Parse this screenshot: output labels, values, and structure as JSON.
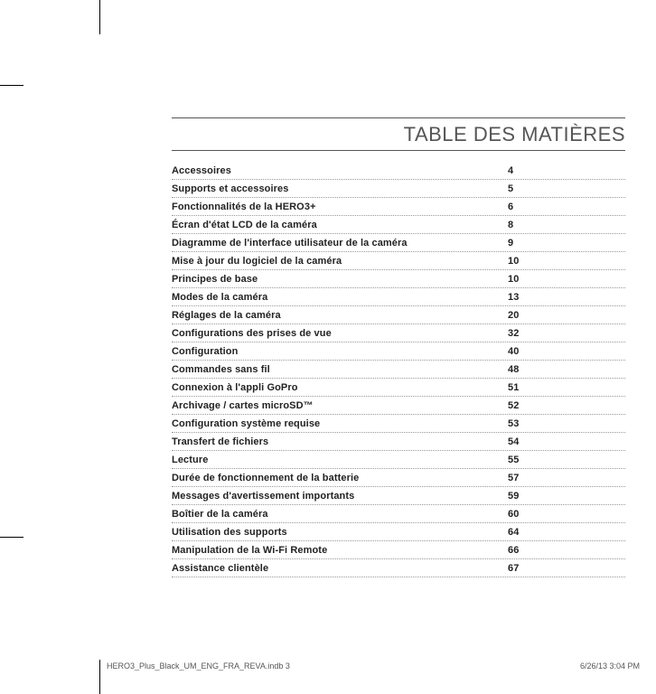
{
  "title": "TABLE DES MATIÈRES",
  "entries": [
    {
      "label": "Accessoires",
      "page": "4"
    },
    {
      "label": "Supports et accessoires",
      "page": "5"
    },
    {
      "label": "Fonctionnalités de la HERO3+",
      "page": "6"
    },
    {
      "label": "Écran d'état LCD de la caméra",
      "page": "8"
    },
    {
      "label": "Diagramme de l'interface utilisateur de la caméra",
      "page": "9"
    },
    {
      "label": "Mise à jour du logiciel de la caméra",
      "page": "10"
    },
    {
      "label": "Principes de base",
      "page": "10"
    },
    {
      "label": "Modes de la caméra",
      "page": "13"
    },
    {
      "label": "Réglages de la caméra",
      "page": "20"
    },
    {
      "label": "Configurations des prises de vue",
      "page": "32"
    },
    {
      "label": "Configuration",
      "page": "40"
    },
    {
      "label": "Commandes sans fil",
      "page": "48"
    },
    {
      "label": "Connexion à l'appli GoPro",
      "page": "51"
    },
    {
      "label": "Archivage / cartes microSD™",
      "page": "52"
    },
    {
      "label": "Configuration système requise",
      "page": "53"
    },
    {
      "label": "Transfert de fichiers",
      "page": "54"
    },
    {
      "label": "Lecture",
      "page": "55"
    },
    {
      "label": "Durée de fonctionnement de la batterie",
      "page": "57"
    },
    {
      "label": "Messages d'avertissement importants",
      "page": "59"
    },
    {
      "label": "Boîtier de la caméra",
      "page": "60"
    },
    {
      "label": "Utilisation des supports",
      "page": "64"
    },
    {
      "label": "Manipulation de la Wi-Fi Remote",
      "page": "66"
    },
    {
      "label": "Assistance clientèle",
      "page": "67"
    }
  ],
  "footer": {
    "filename": "HERO3_Plus_Black_UM_ENG_FRA_REVA.indb   3",
    "datetime": "6/26/13   3:04 PM"
  }
}
